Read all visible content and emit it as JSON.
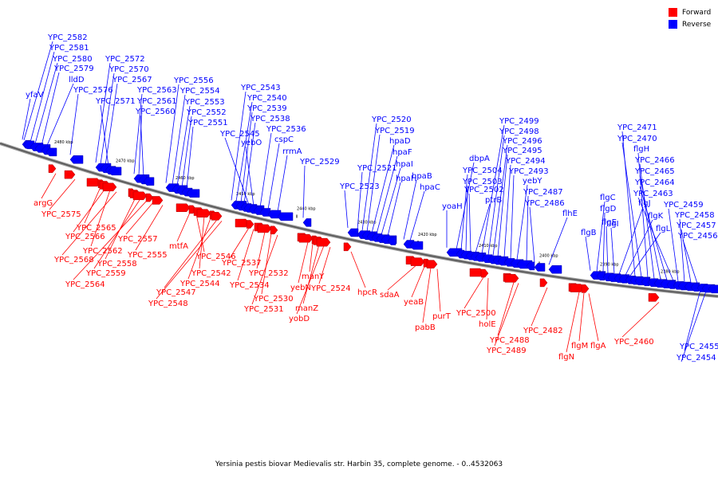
{
  "legend": {
    "forward_label": "Forward",
    "reverse_label": "Reverse",
    "forward_color": "#ff0000",
    "reverse_color": "#0000ff"
  },
  "caption": "Yersinia pestis biovar Medievalis str. Harbin 35, complete genome. - 0..4532063",
  "axis": {
    "unit": "kbp",
    "ticks": [
      "2480 kbp",
      "2470 kbp",
      "2460 kbp",
      "2450 kbp",
      "2440 kbp",
      "2430 kbp",
      "2420 kbp",
      "2410 kbp",
      "2400 kbp",
      "2390 kbp",
      "2380 kbp"
    ]
  },
  "reverse_genes": [
    "yfaV",
    "YPC_2582",
    "YPC_2581",
    "YPC_2580",
    "YPC_2579",
    "lldD",
    "YPC_2576",
    "YPC_2572",
    "YPC_2570",
    "YPC_2567",
    "YPC_2571",
    "YPC_2563",
    "YPC_2561",
    "YPC_2560",
    "YPC_2556",
    "YPC_2554",
    "YPC_2553",
    "YPC_2552",
    "YPC_2551",
    "YPC_2543",
    "YPC_2540",
    "YPC_2539",
    "YPC_2538",
    "YPC_2545",
    "yebO",
    "YPC_2536",
    "cspC",
    "rrmA",
    "YPC_2529",
    "YPC_2523",
    "YPC_2521",
    "YPC_2520",
    "YPC_2519",
    "hpaD",
    "hpaF",
    "hpaI",
    "hpaH",
    "hpaB",
    "hpaC",
    "yoaH",
    "dbpA",
    "YPC_2504",
    "YPC_2503",
    "YPC_2502",
    "ptrB",
    "YPC_2499",
    "YPC_2498",
    "YPC_2496",
    "YPC_2495",
    "YPC_2494",
    "YPC_2493",
    "yebY",
    "YPC_2487",
    "YPC_2486",
    "flhE",
    "flgB",
    "flgC",
    "flgD",
    "flgE",
    "flgI",
    "flgJ",
    "flgK",
    "flgL",
    "YPC_2471",
    "YPC_2470",
    "flgH",
    "YPC_2466",
    "YPC_2465",
    "YPC_2464",
    "YPC_2463",
    "YPC_2459",
    "YPC_2458",
    "YPC_2457",
    "YPC_2456",
    "YPC_2455",
    "YPC_2454"
  ],
  "forward_genes": [
    "argG",
    "YPC_2575",
    "YPC_2565",
    "YPC_2566",
    "YPC_2562",
    "YPC_2568",
    "YPC_2558",
    "YPC_2559",
    "YPC_2564",
    "YPC_2557",
    "YPC_2555",
    "mtfA",
    "YPC_2546",
    "YPC_2542",
    "YPC_2544",
    "YPC_2547",
    "YPC_2548",
    "YPC_2537",
    "YPC_2534",
    "YPC_2532",
    "YPC_2530",
    "YPC_2531",
    "yebN",
    "manY",
    "manZ",
    "yobD",
    "YPC_2524",
    "hpcR",
    "sdaA",
    "yeaB",
    "pabB",
    "purT",
    "YPC_2500",
    "holE",
    "YPC_2488",
    "YPC_2489",
    "YPC_2482",
    "flgN",
    "flgM",
    "flgA",
    "YPC_2460"
  ]
}
